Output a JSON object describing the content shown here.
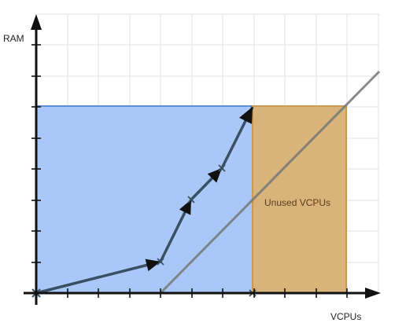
{
  "labels": {
    "y_axis": "RAM",
    "x_axis": "VCPUs",
    "region": "Unused VCPUs"
  },
  "colors": {
    "background": "#ffffff",
    "grid": "#e2e2e2",
    "blue_region_fill": "#a9c8f7",
    "blue_region_stroke": "#5b8fd6",
    "tan_region_fill": "#d8b47a",
    "tan_region_stroke": "#c99a52",
    "path": "#3a4f63",
    "diagonal_line": "#777777",
    "axis": "#111111"
  },
  "icons": {
    "path_arrowhead": "arrowhead-icon",
    "cross_marker": "x-marker-icon"
  }
}
